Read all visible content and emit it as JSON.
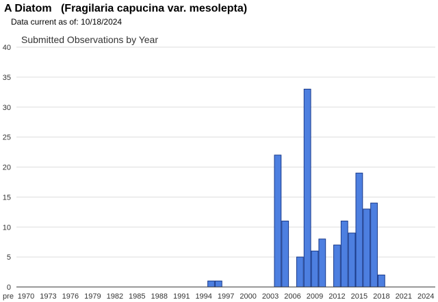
{
  "header": {
    "species_title": "A Diatom   (Fragilaria capucina var. mesolepta)",
    "data_current": "Data current as of: 10/18/2024"
  },
  "colors": {
    "bar_fill": "#4d7fe0",
    "bar_stroke": "#1a3a8a",
    "grid": "#dddddd",
    "axis": "#333333"
  },
  "chart_data": {
    "type": "bar",
    "title": "Submitted Observations by Year",
    "xlabel": "",
    "ylabel": "",
    "ylim": [
      0,
      40
    ],
    "yticks": [
      0,
      5,
      10,
      15,
      20,
      25,
      30,
      35,
      40
    ],
    "grid": true,
    "legend": "none",
    "x_tick_labels": [
      "pre",
      "1970",
      "1973",
      "1976",
      "1979",
      "1982",
      "1985",
      "1988",
      "1991",
      "1994",
      "1997",
      "2000",
      "2003",
      "2006",
      "2009",
      "2012",
      "2015",
      "2018",
      "2021",
      "2024"
    ],
    "categories": [
      "1995",
      "1996",
      "2004",
      "2005",
      "2007",
      "2008",
      "2009",
      "2010",
      "2012",
      "2013",
      "2014",
      "2015",
      "2016",
      "2017",
      "2018"
    ],
    "values": [
      1,
      1,
      22,
      11,
      5,
      33,
      6,
      8,
      7,
      11,
      9,
      19,
      13,
      14,
      2
    ]
  }
}
